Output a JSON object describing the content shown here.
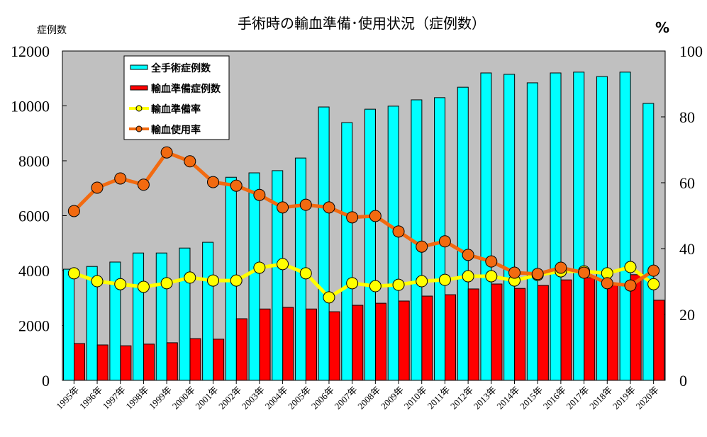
{
  "chart_data": {
    "type": "bar+line",
    "title": "手術時の輸血準備･使用状況（症例数）",
    "ylabel": "症例数",
    "y2label": "%",
    "ylim": [
      0,
      12000
    ],
    "y2lim": [
      0,
      100
    ],
    "yticks": [
      0,
      2000,
      4000,
      6000,
      8000,
      10000,
      12000
    ],
    "y2ticks": [
      0,
      20,
      40,
      60,
      80,
      100
    ],
    "categories": [
      "1995年",
      "1996年",
      "1997年",
      "1998年",
      "1999年",
      "2000年",
      "2001年",
      "2002年",
      "2003年",
      "2004年",
      "2005年",
      "2006年",
      "2007年",
      "2008年",
      "2009年",
      "2010年",
      "2011年",
      "2012年",
      "2013年",
      "2014年",
      "2015年",
      "2016年",
      "2017年",
      "2018年",
      "2019年",
      "2020年"
    ],
    "legend_position": "top-left",
    "series": [
      {
        "name": "全手術症例数",
        "kind": "bar",
        "axis": "left",
        "color": "#00FFFF",
        "values": [
          4050,
          4150,
          4310,
          4640,
          4640,
          4820,
          5030,
          7400,
          7560,
          7640,
          8100,
          9960,
          9390,
          9880,
          9990,
          10220,
          10300,
          10680,
          11200,
          11150,
          10840,
          11200,
          11230,
          11070,
          11230,
          10090
        ]
      },
      {
        "name": "輸血準備症例数",
        "kind": "bar",
        "axis": "left",
        "color": "#FF0000",
        "values": [
          1340,
          1290,
          1260,
          1320,
          1370,
          1520,
          1500,
          2245,
          2600,
          2660,
          2600,
          2500,
          2735,
          2810,
          2890,
          3070,
          3120,
          3330,
          3510,
          3350,
          3460,
          3660,
          3740,
          3540,
          3850,
          2920
        ]
      },
      {
        "name": "輸血準備率",
        "kind": "line",
        "axis": "right",
        "color": "#FFFF00",
        "values": [
          32.5,
          30.1,
          29.2,
          28.4,
          29.5,
          31.2,
          30.3,
          30.3,
          34.2,
          35.3,
          32.5,
          25.2,
          29.5,
          28.6,
          29.0,
          30.1,
          30.5,
          31.6,
          31.6,
          30.3,
          32.0,
          33.1,
          33.1,
          32.5,
          34.4,
          29.2
        ]
      },
      {
        "name": "輸血使用率",
        "kind": "line",
        "axis": "right",
        "color": "#F26A10",
        "values": [
          51.4,
          58.5,
          61.3,
          59.4,
          69.2,
          66.5,
          60.2,
          59.1,
          56.3,
          52.5,
          53.3,
          52.5,
          49.5,
          49.9,
          45.2,
          40.6,
          42.2,
          38.1,
          36.1,
          32.7,
          32.3,
          34.2,
          32.7,
          29.5,
          28.8,
          33.3
        ]
      }
    ]
  }
}
